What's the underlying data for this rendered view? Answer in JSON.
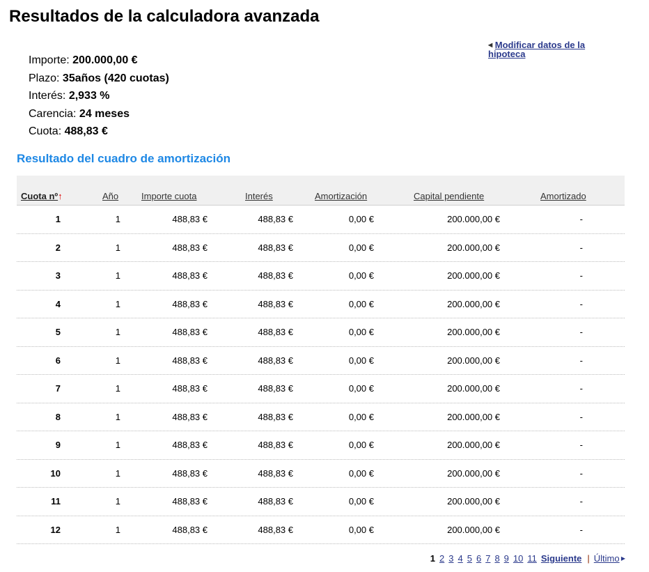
{
  "title": "Resultados de la calculadora avanzada",
  "summary": [
    {
      "label": "Importe: ",
      "value": "200.000,00 €"
    },
    {
      "label": "Plazo: ",
      "value": "35años (420 cuotas)"
    },
    {
      "label": "Interés: ",
      "value": "2,933 %"
    },
    {
      "label": "Carencia: ",
      "value": "24 meses"
    },
    {
      "label": "Cuota: ",
      "value": "488,83 €"
    }
  ],
  "modify_link": "Modificar datos de la hipoteca",
  "section_title": "Resultado del cuadro de amortización",
  "columns": [
    "Cuota nº",
    "Año",
    "Importe cuota",
    "Interés",
    "Amortización",
    "Capital pendiente",
    "Amortizado"
  ],
  "sort_icon": "arrow-up-icon",
  "rows": [
    [
      "1",
      "1",
      "488,83 €",
      "488,83 €",
      "0,00 €",
      "200.000,00 €",
      "-"
    ],
    [
      "2",
      "1",
      "488,83 €",
      "488,83 €",
      "0,00 €",
      "200.000,00 €",
      "-"
    ],
    [
      "3",
      "1",
      "488,83 €",
      "488,83 €",
      "0,00 €",
      "200.000,00 €",
      "-"
    ],
    [
      "4",
      "1",
      "488,83 €",
      "488,83 €",
      "0,00 €",
      "200.000,00 €",
      "-"
    ],
    [
      "5",
      "1",
      "488,83 €",
      "488,83 €",
      "0,00 €",
      "200.000,00 €",
      "-"
    ],
    [
      "6",
      "1",
      "488,83 €",
      "488,83 €",
      "0,00 €",
      "200.000,00 €",
      "-"
    ],
    [
      "7",
      "1",
      "488,83 €",
      "488,83 €",
      "0,00 €",
      "200.000,00 €",
      "-"
    ],
    [
      "8",
      "1",
      "488,83 €",
      "488,83 €",
      "0,00 €",
      "200.000,00 €",
      "-"
    ],
    [
      "9",
      "1",
      "488,83 €",
      "488,83 €",
      "0,00 €",
      "200.000,00 €",
      "-"
    ],
    [
      "10",
      "1",
      "488,83 €",
      "488,83 €",
      "0,00 €",
      "200.000,00 €",
      "-"
    ],
    [
      "11",
      "1",
      "488,83 €",
      "488,83 €",
      "0,00 €",
      "200.000,00 €",
      "-"
    ],
    [
      "12",
      "1",
      "488,83 €",
      "488,83 €",
      "0,00 €",
      "200.000,00 €",
      "-"
    ]
  ],
  "pagination": {
    "current": "1",
    "pages": [
      "2",
      "3",
      "4",
      "5",
      "6",
      "7",
      "8",
      "9",
      "10",
      "11"
    ],
    "next": "Siguiente",
    "separator": "|",
    "last": "Último"
  }
}
